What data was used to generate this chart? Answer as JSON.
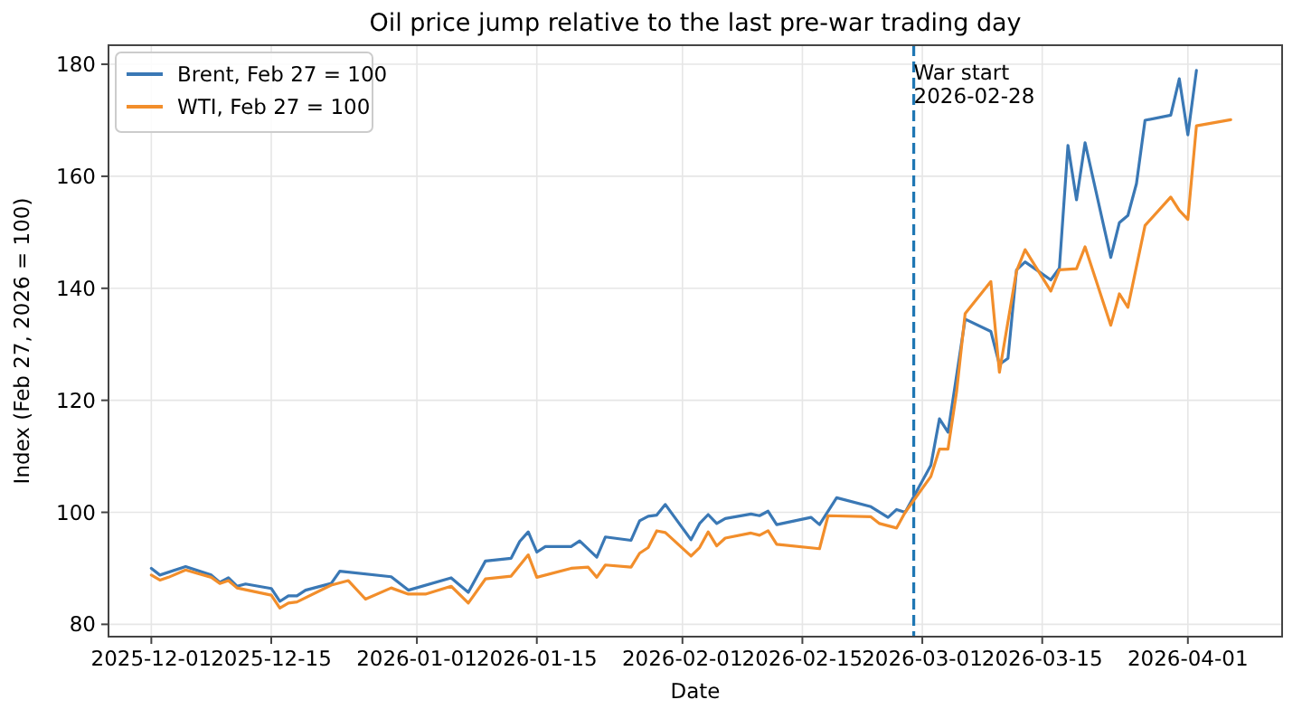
{
  "chart_data": {
    "type": "line",
    "title": "Oil price jump relative to the last pre-war trading day",
    "xlabel": "Date",
    "ylabel": "Index (Feb 27, 2026 = 100)",
    "xlim": [
      "2025-11-26",
      "2026-04-12"
    ],
    "ylim": [
      77.8,
      183.4
    ],
    "xticks": [
      {
        "value": "2025-12-01",
        "label": "2025-12-01"
      },
      {
        "value": "2025-12-15",
        "label": "2025-12-15"
      },
      {
        "value": "2026-01-01",
        "label": "2026-01-01"
      },
      {
        "value": "2026-01-15",
        "label": "2026-01-15"
      },
      {
        "value": "2026-02-01",
        "label": "2026-02-01"
      },
      {
        "value": "2026-02-15",
        "label": "2026-02-15"
      },
      {
        "value": "2026-03-01",
        "label": "2026-03-01"
      },
      {
        "value": "2026-03-15",
        "label": "2026-03-15"
      },
      {
        "value": "2026-04-01",
        "label": "2026-04-01"
      }
    ],
    "yticks": [
      80,
      100,
      120,
      140,
      160,
      180
    ],
    "grid": true,
    "legend": "top left",
    "line_style": "solid",
    "marker": "none",
    "ref_lines": [
      {
        "axis": "x",
        "value": "2026-02-28",
        "label": "War start\n2026-02-28",
        "color": "#1f77b4",
        "line_style": "dashed"
      }
    ],
    "series": [
      {
        "name": "Brent, Feb 27 = 100",
        "color": "#3a78b5",
        "x": [
          "2025-12-01",
          "2025-12-02",
          "2025-12-05",
          "2025-12-08",
          "2025-12-09",
          "2025-12-10",
          "2025-12-11",
          "2025-12-12",
          "2025-12-15",
          "2025-12-16",
          "2025-12-17",
          "2025-12-18",
          "2025-12-19",
          "2025-12-22",
          "2025-12-23",
          "2025-12-29",
          "2025-12-31",
          "2026-01-05",
          "2026-01-07",
          "2026-01-09",
          "2026-01-12",
          "2026-01-13",
          "2026-01-14",
          "2026-01-15",
          "2026-01-16",
          "2026-01-19",
          "2026-01-20",
          "2026-01-22",
          "2026-01-23",
          "2026-01-26",
          "2026-01-27",
          "2026-01-28",
          "2026-01-29",
          "2026-01-30",
          "2026-02-02",
          "2026-02-03",
          "2026-02-04",
          "2026-02-05",
          "2026-02-06",
          "2026-02-09",
          "2026-02-10",
          "2026-02-11",
          "2026-02-12",
          "2026-02-16",
          "2026-02-17",
          "2026-02-19",
          "2026-02-23",
          "2026-02-25",
          "2026-02-26",
          "2026-02-27",
          "2026-03-02",
          "2026-03-03",
          "2026-03-04",
          "2026-03-06",
          "2026-03-09",
          "2026-03-10",
          "2026-03-11",
          "2026-03-12",
          "2026-03-13",
          "2026-03-16",
          "2026-03-17",
          "2026-03-18",
          "2026-03-19",
          "2026-03-20",
          "2026-03-23",
          "2026-03-24",
          "2026-03-25",
          "2026-03-26",
          "2026-03-27",
          "2026-03-30",
          "2026-03-31",
          "2026-04-01",
          "2026-04-02"
        ],
        "values": [
          90.0,
          88.8,
          90.3,
          88.8,
          87.5,
          88.3,
          86.8,
          87.2,
          86.4,
          84.1,
          85.1,
          85.1,
          86.1,
          87.3,
          89.5,
          88.5,
          86.1,
          88.3,
          85.7,
          91.3,
          91.8,
          94.8,
          96.5,
          92.9,
          93.9,
          93.9,
          94.9,
          92.0,
          95.6,
          95.0,
          98.5,
          99.3,
          99.5,
          101.4,
          95.1,
          98.0,
          99.6,
          98.0,
          98.9,
          99.7,
          99.4,
          100.2,
          97.8,
          99.1,
          97.8,
          102.6,
          101.0,
          99.1,
          100.5,
          100,
          108.4,
          116.7,
          114.3,
          134.5,
          132.3,
          126.4,
          127.5,
          143.3,
          144.7,
          141.5,
          143.6,
          165.5,
          155.8,
          166.0,
          145.5,
          151.7,
          153.0,
          158.7,
          170.0,
          170.9,
          177.4,
          167.4,
          178.9
        ]
      },
      {
        "name": "WTI, Feb 27 = 100",
        "color": "#f28e2b",
        "x": [
          "2025-12-01",
          "2025-12-02",
          "2025-12-03",
          "2025-12-05",
          "2025-12-08",
          "2025-12-09",
          "2025-12-10",
          "2025-12-11",
          "2025-12-15",
          "2025-12-16",
          "2025-12-17",
          "2025-12-18",
          "2025-12-22",
          "2025-12-24",
          "2025-12-26",
          "2025-12-29",
          "2025-12-31",
          "2026-01-02",
          "2026-01-05",
          "2026-01-07",
          "2026-01-09",
          "2026-01-12",
          "2026-01-14",
          "2026-01-15",
          "2026-01-19",
          "2026-01-21",
          "2026-01-22",
          "2026-01-23",
          "2026-01-26",
          "2026-01-27",
          "2026-01-28",
          "2026-01-29",
          "2026-01-30",
          "2026-02-02",
          "2026-02-03",
          "2026-02-04",
          "2026-02-05",
          "2026-02-06",
          "2026-02-09",
          "2026-02-10",
          "2026-02-11",
          "2026-02-12",
          "2026-02-17",
          "2026-02-18",
          "2026-02-23",
          "2026-02-24",
          "2026-02-26",
          "2026-02-27",
          "2026-03-02",
          "2026-03-03",
          "2026-03-04",
          "2026-03-05",
          "2026-03-06",
          "2026-03-09",
          "2026-03-10",
          "2026-03-12",
          "2026-03-13",
          "2026-03-16",
          "2026-03-17",
          "2026-03-19",
          "2026-03-20",
          "2026-03-23",
          "2026-03-24",
          "2026-03-25",
          "2026-03-27",
          "2026-03-30",
          "2026-03-31",
          "2026-04-01",
          "2026-04-02",
          "2026-04-06"
        ],
        "values": [
          88.8,
          87.9,
          88.4,
          89.7,
          88.4,
          87.3,
          87.8,
          86.5,
          85.2,
          82.9,
          83.8,
          84.0,
          87.0,
          87.8,
          84.5,
          86.5,
          85.4,
          85.4,
          86.8,
          83.8,
          88.1,
          88.6,
          92.4,
          88.4,
          90.0,
          90.2,
          88.4,
          90.6,
          90.2,
          92.7,
          93.7,
          96.7,
          96.4,
          92.2,
          93.7,
          96.5,
          94.0,
          95.4,
          96.3,
          95.9,
          96.7,
          94.3,
          93.5,
          99.4,
          99.2,
          98.0,
          97.2,
          100,
          106.4,
          111.3,
          111.3,
          121.5,
          135.5,
          141.2,
          125.0,
          143.1,
          146.9,
          139.5,
          143.3,
          143.5,
          147.4,
          133.4,
          139.0,
          136.6,
          151.2,
          156.3,
          153.9,
          152.3,
          169.0,
          170.1
        ]
      }
    ]
  }
}
